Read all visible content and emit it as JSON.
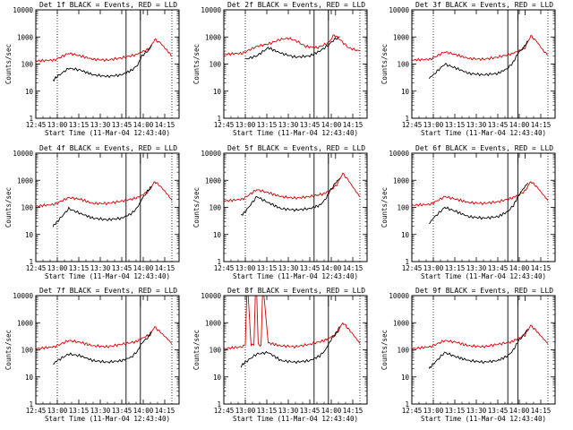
{
  "chart_data": {
    "type": "line",
    "grid": "none",
    "xlabel": "Start Time (11-Mar-04 12:43:40)",
    "ylabel": "Counts/sec",
    "yscale": "log",
    "ylim": [
      1,
      10000
    ],
    "xlim_minutes_after_1245": [
      0,
      100
    ],
    "y_tick_labels": [
      "1",
      "10",
      "100",
      "1000",
      "10000"
    ],
    "x_tick_labels_col1": [
      "12:45",
      "13:00",
      "13:15",
      "13:30",
      "13:45",
      "14:00",
      "14:15"
    ],
    "x_tick_labels_col23": [
      "12:45",
      "13:00",
      "13:15",
      "13:30",
      "13:45",
      "14:00",
      "14:15"
    ],
    "colors": {
      "black_series": "#000000",
      "red_series": "#d40000",
      "axes": "#000000"
    },
    "series_names": [
      "Events",
      "LLD"
    ],
    "panels": [
      {
        "title": "Det 1f BLACK = Events, RED = LLD",
        "variant": 1,
        "dotted_lines": [
          "13:00",
          "14:20"
        ],
        "solid_lines": [
          "13:48",
          "13:58"
        ],
        "rect": [
          "13:58",
          "14:03"
        ],
        "red": {
          "x": [
            "12:45",
            "12:58",
            "13:08",
            "13:16",
            "13:25",
            "13:35",
            "13:45",
            "13:55",
            "14:00",
            "14:04",
            "14:08",
            "14:12",
            "14:17",
            "14:20"
          ],
          "y": [
            130,
            140,
            250,
            200,
            150,
            140,
            170,
            220,
            300,
            350,
            800,
            600,
            300,
            200
          ]
        },
        "black": {
          "x": [
            "12:57",
            "13:00",
            "13:08",
            "13:16",
            "13:25",
            "13:35",
            "13:45",
            "13:52",
            "13:56",
            "13:59",
            "14:03",
            "14:06"
          ],
          "y": [
            25,
            35,
            70,
            60,
            40,
            35,
            40,
            60,
            90,
            200,
            300,
            500
          ]
        }
      },
      {
        "title": "Det 2f BLACK = Events, RED = LLD",
        "variant": 2,
        "dotted_lines": [
          "13:00",
          "14:20"
        ],
        "solid_lines": [
          "13:48",
          "13:58"
        ],
        "rect": [
          "13:58",
          "14:03"
        ],
        "red": {
          "x": [
            "12:45",
            "12:58",
            "13:08",
            "13:16",
            "13:24",
            "13:30",
            "13:36",
            "13:42",
            "13:50",
            "13:58",
            "14:02",
            "14:06",
            "14:12",
            "14:20"
          ],
          "y": [
            230,
            250,
            450,
            550,
            800,
            900,
            700,
            450,
            400,
            600,
            1200,
            800,
            400,
            300
          ]
        },
        "black": {
          "x": [
            "13:00",
            "13:08",
            "13:16",
            "13:25",
            "13:35",
            "13:45",
            "13:52",
            "13:58",
            "14:02",
            "14:06"
          ],
          "y": [
            150,
            200,
            400,
            250,
            180,
            200,
            300,
            500,
            800,
            1000
          ]
        }
      },
      {
        "title": "Det 3f BLACK = Events, RED = LLD",
        "variant": 3,
        "dotted_lines": [
          "13:00",
          "14:20"
        ],
        "solid_lines": [
          "13:52",
          "13:59"
        ],
        "rect": [
          "13:59",
          "14:04"
        ],
        "red": {
          "x": [
            "12:45",
            "12:58",
            "13:08",
            "13:16",
            "13:25",
            "13:35",
            "13:45",
            "13:55",
            "14:00",
            "14:04",
            "14:08",
            "14:12",
            "14:17",
            "14:20"
          ],
          "y": [
            140,
            150,
            280,
            220,
            160,
            150,
            180,
            240,
            320,
            400,
            1100,
            700,
            300,
            220
          ]
        },
        "black": {
          "x": [
            "12:57",
            "13:00",
            "13:08",
            "13:16",
            "13:25",
            "13:35",
            "13:45",
            "13:52",
            "13:56",
            "13:59",
            "14:03",
            "14:06"
          ],
          "y": [
            30,
            40,
            100,
            70,
            45,
            40,
            45,
            70,
            120,
            250,
            400,
            700
          ]
        }
      },
      {
        "title": "Det 4f BLACK = Events, RED = LLD",
        "variant": 1,
        "dotted_lines": [
          "13:00",
          "14:20"
        ],
        "solid_lines": [
          "13:48",
          "13:58"
        ],
        "rect": [
          "13:58",
          "14:03"
        ],
        "red": {
          "x": [
            "12:45",
            "12:58",
            "13:08",
            "13:16",
            "13:25",
            "13:35",
            "13:45",
            "13:55",
            "14:00",
            "14:04",
            "14:08",
            "14:12",
            "14:17",
            "14:20"
          ],
          "y": [
            110,
            130,
            230,
            200,
            140,
            140,
            170,
            220,
            300,
            400,
            900,
            600,
            300,
            180
          ]
        },
        "black": {
          "x": [
            "12:57",
            "13:00",
            "13:08",
            "13:16",
            "13:25",
            "13:35",
            "13:45",
            "13:52",
            "13:56",
            "13:59",
            "14:03",
            "14:06"
          ],
          "y": [
            20,
            30,
            90,
            60,
            40,
            35,
            40,
            60,
            100,
            200,
            400,
            600
          ]
        }
      },
      {
        "title": "Det 5f BLACK = Events, RED = LLD",
        "variant": 2,
        "dotted_lines": [
          "13:00",
          "14:20"
        ],
        "solid_lines": [
          "13:48",
          "13:58"
        ],
        "rect": [
          "13:58",
          "14:03"
        ],
        "red": {
          "x": [
            "12:45",
            "12:58",
            "13:08",
            "13:16",
            "13:25",
            "13:35",
            "13:45",
            "13:55",
            "14:00",
            "14:04",
            "14:08",
            "14:12",
            "14:17",
            "14:20"
          ],
          "y": [
            170,
            200,
            450,
            350,
            250,
            220,
            250,
            320,
            450,
            700,
            1800,
            1000,
            400,
            250
          ]
        },
        "black": {
          "x": [
            "12:57",
            "13:00",
            "13:08",
            "13:16",
            "13:25",
            "13:35",
            "13:45",
            "13:52",
            "13:56",
            "13:59",
            "14:03",
            "14:06"
          ],
          "y": [
            50,
            70,
            250,
            150,
            90,
            80,
            90,
            120,
            200,
            400,
            800,
            1200
          ]
        }
      },
      {
        "title": "Det 6f BLACK = Events, RED = LLD",
        "variant": 3,
        "dotted_lines": [
          "13:00",
          "14:20"
        ],
        "solid_lines": [
          "13:52",
          "13:59"
        ],
        "rect": [
          "13:59",
          "14:04"
        ],
        "red": {
          "x": [
            "12:45",
            "12:58",
            "13:08",
            "13:16",
            "13:25",
            "13:35",
            "13:45",
            "13:55",
            "14:00",
            "14:04",
            "14:08",
            "14:12",
            "14:17",
            "14:20"
          ],
          "y": [
            120,
            130,
            250,
            200,
            150,
            140,
            160,
            220,
            300,
            400,
            900,
            600,
            280,
            180
          ]
        },
        "black": {
          "x": [
            "12:57",
            "13:00",
            "13:08",
            "13:16",
            "13:25",
            "13:35",
            "13:45",
            "13:52",
            "13:56",
            "13:59",
            "14:03",
            "14:06"
          ],
          "y": [
            25,
            40,
            100,
            70,
            45,
            40,
            45,
            70,
            120,
            250,
            500,
            800
          ]
        }
      },
      {
        "title": "Det 7f BLACK = Events, RED = LLD",
        "variant": 1,
        "dotted_lines": [
          "13:00",
          "14:20"
        ],
        "solid_lines": [
          "13:48",
          "13:58"
        ],
        "rect": [
          "13:58",
          "14:03"
        ],
        "red": {
          "x": [
            "12:45",
            "12:58",
            "13:08",
            "13:16",
            "13:25",
            "13:35",
            "13:45",
            "13:55",
            "14:00",
            "14:04",
            "14:08",
            "14:12",
            "14:17",
            "14:20"
          ],
          "y": [
            110,
            130,
            220,
            190,
            140,
            130,
            160,
            200,
            280,
            350,
            700,
            450,
            250,
            170
          ]
        },
        "black": {
          "x": [
            "12:57",
            "13:00",
            "13:08",
            "13:16",
            "13:25",
            "13:35",
            "13:45",
            "13:52",
            "13:56",
            "13:59",
            "14:03",
            "14:06"
          ],
          "y": [
            30,
            40,
            70,
            60,
            40,
            35,
            40,
            55,
            90,
            180,
            280,
            450
          ]
        }
      },
      {
        "title": "Det 8f BLACK = Events, RED = LLD",
        "variant": 2,
        "dotted_lines": [
          "13:00",
          "14:20"
        ],
        "solid_lines": [
          "13:48",
          "13:58"
        ],
        "rect": [
          "13:58",
          "14:03"
        ],
        "red": {
          "x": [
            "12:45",
            "12:58",
            "13:00",
            "13:01",
            "13:02",
            "13:04",
            "13:06",
            "13:07",
            "13:08",
            "13:09",
            "13:11",
            "13:12",
            "13:13",
            "13:16",
            "13:25",
            "13:35",
            "13:45",
            "13:55",
            "14:00",
            "14:04",
            "14:08",
            "14:12",
            "14:17",
            "14:20"
          ],
          "y": [
            110,
            130,
            150,
            10000,
            10000,
            150,
            150,
            10000,
            10000,
            150,
            150,
            10000,
            10000,
            180,
            140,
            130,
            160,
            220,
            300,
            400,
            1000,
            600,
            280,
            170
          ]
        },
        "black": {
          "x": [
            "12:57",
            "13:00",
            "13:08",
            "13:16",
            "13:25",
            "13:35",
            "13:45",
            "13:52",
            "13:56",
            "13:59",
            "14:03",
            "14:06"
          ],
          "y": [
            25,
            35,
            70,
            80,
            40,
            35,
            40,
            60,
            100,
            200,
            400,
            700
          ]
        }
      },
      {
        "title": "Det 9f BLACK = Events, RED = LLD",
        "variant": 3,
        "dotted_lines": [
          "13:00",
          "14:20"
        ],
        "solid_lines": [
          "13:52",
          "13:59"
        ],
        "rect": [
          "13:59",
          "14:04"
        ],
        "red": {
          "x": [
            "12:45",
            "12:58",
            "13:08",
            "13:16",
            "13:25",
            "13:35",
            "13:45",
            "13:55",
            "14:00",
            "14:04",
            "14:08",
            "14:12",
            "14:17",
            "14:20"
          ],
          "y": [
            110,
            130,
            220,
            190,
            140,
            130,
            160,
            200,
            280,
            350,
            800,
            500,
            250,
            170
          ]
        },
        "black": {
          "x": [
            "12:57",
            "13:00",
            "13:08",
            "13:16",
            "13:25",
            "13:35",
            "13:45",
            "13:52",
            "13:56",
            "13:59",
            "14:03",
            "14:06"
          ],
          "y": [
            20,
            30,
            80,
            55,
            40,
            35,
            40,
            60,
            100,
            200,
            350,
            600
          ]
        }
      }
    ]
  }
}
